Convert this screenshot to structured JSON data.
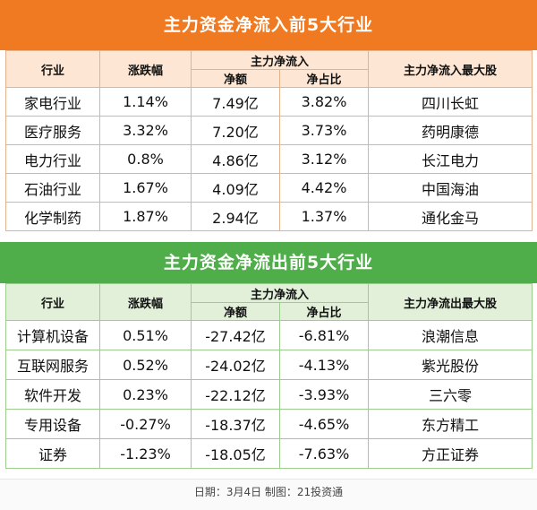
{
  "inflow": {
    "title": "主力资金净流入前5大行业",
    "headers": {
      "industry": "行业",
      "change": "涨跌幅",
      "main_net": "主力净流入",
      "net_amount": "净额",
      "net_ratio": "净占比",
      "top_stock": "主力净流入最大股"
    },
    "rows": [
      {
        "industry": "家电行业",
        "change": "1.14%",
        "amount": "7.49亿",
        "ratio": "3.82%",
        "stock": "四川长虹"
      },
      {
        "industry": "医疗服务",
        "change": "3.32%",
        "amount": "7.20亿",
        "ratio": "3.73%",
        "stock": "药明康德"
      },
      {
        "industry": "电力行业",
        "change": "0.8%",
        "amount": "4.86亿",
        "ratio": "3.12%",
        "stock": "长江电力"
      },
      {
        "industry": "石油行业",
        "change": "1.67%",
        "amount": "4.09亿",
        "ratio": "4.42%",
        "stock": "中国海油"
      },
      {
        "industry": "化学制药",
        "change": "1.87%",
        "amount": "2.94亿",
        "ratio": "1.37%",
        "stock": "通化金马"
      }
    ]
  },
  "outflow": {
    "title": "主力资金净流出前5大行业",
    "headers": {
      "industry": "行业",
      "change": "涨跌幅",
      "main_net": "主力净流入",
      "net_amount": "净额",
      "net_ratio": "净占比",
      "top_stock": "主力净流出最大股"
    },
    "rows": [
      {
        "industry": "计算机设备",
        "change": "0.51%",
        "amount": "-27.42亿",
        "ratio": "-6.81%",
        "stock": "浪潮信息"
      },
      {
        "industry": "互联网服务",
        "change": "0.52%",
        "amount": "-24.02亿",
        "ratio": "-4.13%",
        "stock": "紫光股份"
      },
      {
        "industry": "软件开发",
        "change": "0.23%",
        "amount": "-22.12亿",
        "ratio": "-3.93%",
        "stock": "三六零"
      },
      {
        "industry": "专用设备",
        "change": "-0.27%",
        "amount": "-18.37亿",
        "ratio": "-4.65%",
        "stock": "东方精工"
      },
      {
        "industry": "证券",
        "change": "-1.23%",
        "amount": "-18.05亿",
        "ratio": "-7.63%",
        "stock": "方正证券"
      }
    ]
  },
  "footer": "日期：3月4日 制图：21投资通"
}
